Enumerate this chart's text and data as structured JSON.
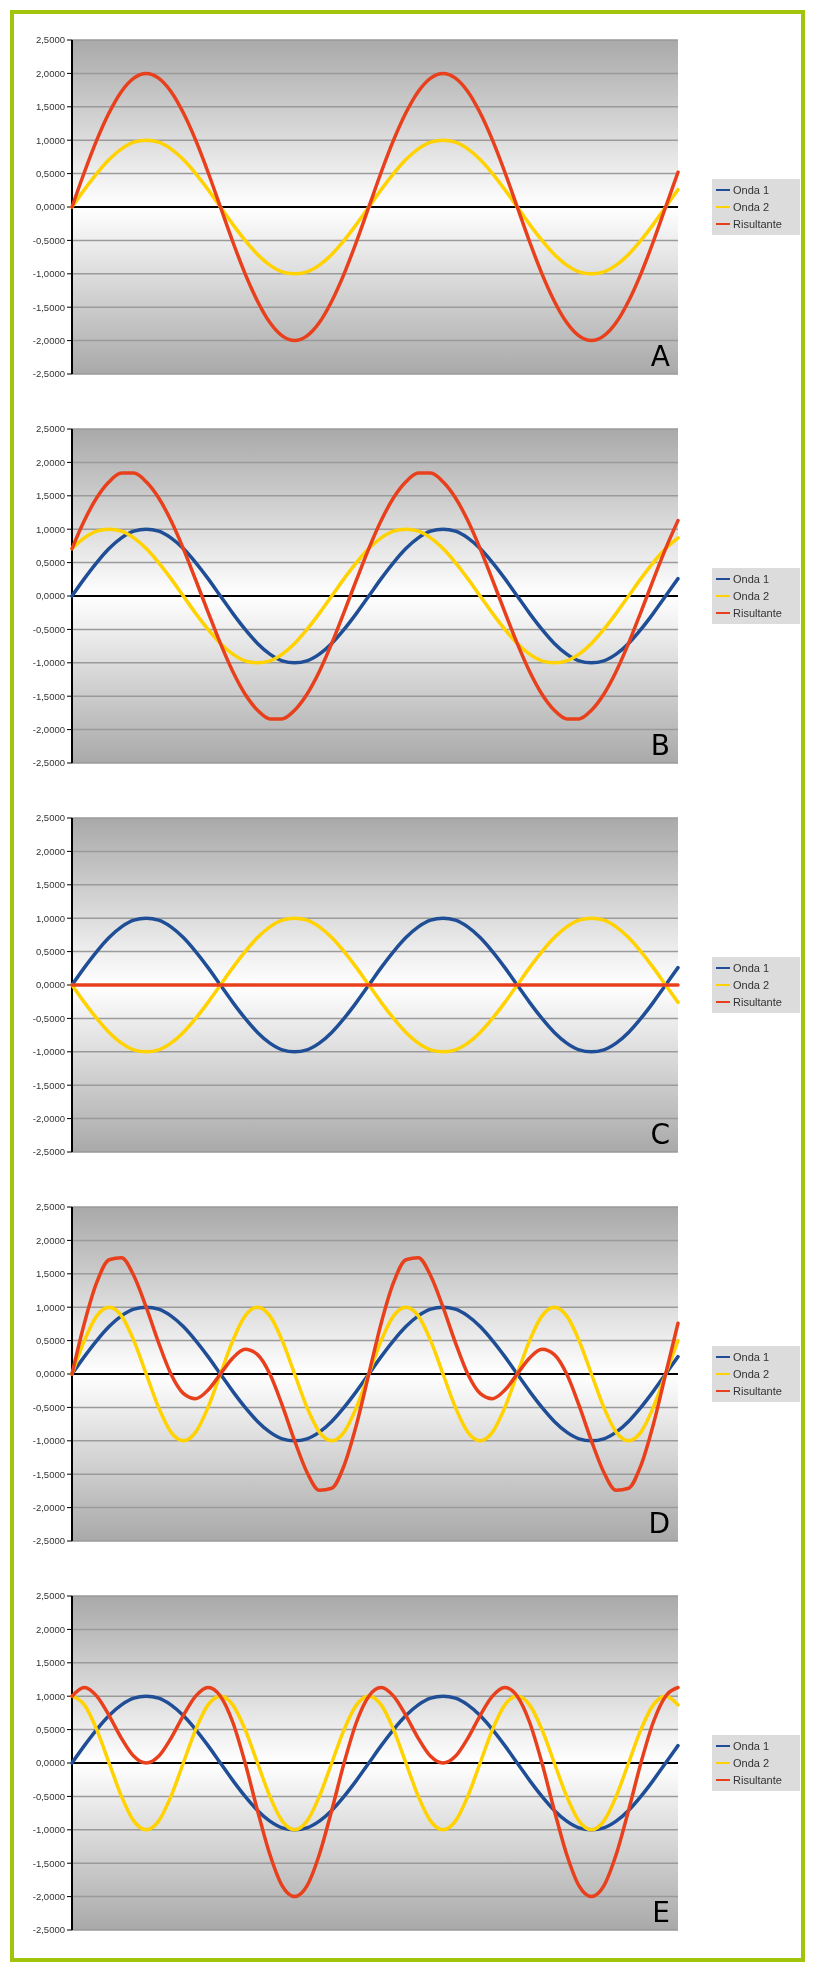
{
  "chart_data": [
    {
      "type": "line",
      "annotations": [
        "A"
      ],
      "legend": "right",
      "grid": "y",
      "ylim": [
        -2.5,
        2.5
      ],
      "yticks": [
        {
          "value": 2.5,
          "label": "2,5000"
        },
        {
          "value": 2,
          "label": "2,0000"
        },
        {
          "value": 1.5,
          "label": "1,5000"
        },
        {
          "value": 1,
          "label": "1,0000"
        },
        {
          "value": 0.5,
          "label": "0,5000"
        },
        {
          "value": 0,
          "label": "0,0000"
        },
        {
          "value": -0.5,
          "label": "-0,5000"
        },
        {
          "value": -1,
          "label": "-1,0000"
        },
        {
          "value": -1.5,
          "label": "-1,5000"
        },
        {
          "value": -2,
          "label": "-2,0000"
        },
        {
          "value": -2.5,
          "label": "-2,5000"
        }
      ],
      "categories": [
        null,
        null,
        null,
        null,
        null,
        null,
        null,
        null,
        null,
        null,
        null,
        null,
        null,
        null,
        null,
        null,
        null,
        null,
        null,
        null,
        null,
        null,
        null,
        null,
        null,
        null,
        null,
        null,
        null,
        null,
        null,
        null,
        null,
        null,
        null,
        null,
        null,
        null,
        null,
        null,
        null,
        null,
        null,
        null,
        null,
        null,
        null,
        null,
        null,
        null
      ],
      "series": [
        {
          "name": "Onda 1",
          "color": "#1f4e96",
          "values": [
            null,
            null,
            null,
            null,
            null,
            null,
            null,
            null,
            null,
            null,
            null,
            null,
            null,
            null,
            null,
            null,
            null,
            null,
            null,
            null,
            null,
            null,
            null,
            null,
            null,
            null,
            null,
            null,
            null,
            null,
            null,
            null,
            null,
            null,
            null,
            null,
            null,
            null,
            null,
            null,
            null,
            null,
            null,
            null,
            null,
            null,
            null,
            null,
            null,
            null
          ]
        },
        {
          "name": "Onda 2",
          "color": "#ffd200",
          "values": [
            0,
            0.26,
            0.5,
            0.71,
            0.87,
            0.97,
            1,
            0.97,
            0.87,
            0.71,
            0.5,
            0.26,
            0,
            -0.26,
            -0.5,
            -0.71,
            -0.87,
            -0.97,
            -1,
            -0.97,
            -0.87,
            -0.71,
            -0.5,
            -0.26,
            0,
            0.26,
            0.5,
            0.71,
            0.87,
            0.97,
            1,
            0.97,
            0.87,
            0.71,
            0.5,
            0.26,
            0,
            -0.26,
            -0.5,
            -0.71,
            -0.87,
            -0.97,
            -1,
            -0.97,
            -0.87,
            -0.71,
            -0.5,
            -0.26,
            0,
            0.26
          ]
        },
        {
          "name": "Risultante",
          "color": "#e8401c",
          "values": [
            0,
            0.52,
            1,
            1.41,
            1.73,
            1.93,
            2,
            1.93,
            1.73,
            1.41,
            1,
            0.52,
            0,
            -0.52,
            -1,
            -1.41,
            -1.73,
            -1.93,
            -2,
            -1.93,
            -1.73,
            -1.41,
            -1,
            -0.52,
            0,
            0.52,
            1,
            1.41,
            1.73,
            1.93,
            2,
            1.93,
            1.73,
            1.41,
            1,
            0.52,
            0,
            -0.52,
            -1,
            -1.41,
            -1.73,
            -1.93,
            -2,
            -1.93,
            -1.73,
            -1.41,
            -1,
            -0.52,
            0,
            0.52
          ]
        }
      ]
    },
    {
      "type": "line",
      "annotations": [
        "B"
      ],
      "legend": "right",
      "grid": "y",
      "ylim": [
        -2.5,
        2.5
      ],
      "yticks": [
        {
          "value": 2.5,
          "label": "2,5000"
        },
        {
          "value": 2,
          "label": "2,0000"
        },
        {
          "value": 1.5,
          "label": "1,5000"
        },
        {
          "value": 1,
          "label": "1,0000"
        },
        {
          "value": 0.5,
          "label": "0,5000"
        },
        {
          "value": 0,
          "label": "0,0000"
        },
        {
          "value": -0.5,
          "label": "-0,5000"
        },
        {
          "value": -1,
          "label": "-1,0000"
        },
        {
          "value": -1.5,
          "label": "-1,5000"
        },
        {
          "value": -2,
          "label": "-2,0000"
        },
        {
          "value": -2.5,
          "label": "-2,5000"
        }
      ],
      "categories": [
        null,
        null,
        null,
        null,
        null,
        null,
        null,
        null,
        null,
        null,
        null,
        null,
        null,
        null,
        null,
        null,
        null,
        null,
        null,
        null,
        null,
        null,
        null,
        null,
        null,
        null,
        null,
        null,
        null,
        null,
        null,
        null,
        null,
        null,
        null,
        null,
        null,
        null,
        null,
        null,
        null,
        null,
        null,
        null,
        null,
        null,
        null,
        null,
        null,
        null
      ],
      "series": [
        {
          "name": "Onda 1",
          "color": "#1f4e96",
          "values": [
            0,
            0.26,
            0.5,
            0.71,
            0.87,
            0.97,
            1,
            0.97,
            0.87,
            0.71,
            0.5,
            0.26,
            0,
            -0.26,
            -0.5,
            -0.71,
            -0.87,
            -0.97,
            -1,
            -0.97,
            -0.87,
            -0.71,
            -0.5,
            -0.26,
            0,
            0.26,
            0.5,
            0.71,
            0.87,
            0.97,
            1,
            0.97,
            0.87,
            0.71,
            0.5,
            0.26,
            0,
            -0.26,
            -0.5,
            -0.71,
            -0.87,
            -0.97,
            -1,
            -0.97,
            -0.87,
            -0.71,
            -0.5,
            -0.26,
            0,
            0.26
          ]
        },
        {
          "name": "Onda 2",
          "color": "#ffd200",
          "values": [
            0.71,
            0.87,
            0.97,
            1,
            0.97,
            0.87,
            0.71,
            0.5,
            0.26,
            0,
            -0.26,
            -0.5,
            -0.71,
            -0.87,
            -0.97,
            -1,
            -0.97,
            -0.87,
            -0.71,
            -0.5,
            -0.26,
            0,
            0.26,
            0.5,
            0.71,
            0.87,
            0.97,
            1,
            0.97,
            0.87,
            0.71,
            0.5,
            0.26,
            0,
            -0.26,
            -0.5,
            -0.71,
            -0.87,
            -0.97,
            -1,
            -0.97,
            -0.87,
            -0.71,
            -0.5,
            -0.26,
            0,
            0.26,
            0.5,
            0.71,
            0.87
          ]
        },
        {
          "name": "Risultante",
          "color": "#e8401c",
          "values": [
            0.71,
            1.13,
            1.47,
            1.71,
            1.84,
            1.84,
            1.71,
            1.47,
            1.13,
            0.71,
            0.24,
            -0.24,
            -0.71,
            -1.13,
            -1.47,
            -1.71,
            -1.84,
            -1.84,
            -1.71,
            -1.47,
            -1.13,
            -0.71,
            -0.24,
            0.24,
            0.71,
            1.13,
            1.47,
            1.71,
            1.84,
            1.84,
            1.71,
            1.47,
            1.13,
            0.71,
            0.24,
            -0.24,
            -0.71,
            -1.13,
            -1.47,
            -1.71,
            -1.84,
            -1.84,
            -1.71,
            -1.47,
            -1.13,
            -0.71,
            -0.24,
            0.24,
            0.71,
            1.13
          ]
        }
      ]
    },
    {
      "type": "line",
      "annotations": [
        "C"
      ],
      "legend": "right",
      "grid": "y",
      "ylim": [
        -2.5,
        2.5
      ],
      "yticks": [
        {
          "value": 2.5,
          "label": "2,5000"
        },
        {
          "value": 2,
          "label": "2,0000"
        },
        {
          "value": 1.5,
          "label": "1,5000"
        },
        {
          "value": 1,
          "label": "1,0000"
        },
        {
          "value": 0.5,
          "label": "0,5000"
        },
        {
          "value": 0,
          "label": "0,0000"
        },
        {
          "value": -0.5,
          "label": "-0,5000"
        },
        {
          "value": -1,
          "label": "-1,0000"
        },
        {
          "value": -1.5,
          "label": "-1,5000"
        },
        {
          "value": -2,
          "label": "-2,0000"
        },
        {
          "value": -2.5,
          "label": "-2,5000"
        }
      ],
      "categories": [
        null,
        null,
        null,
        null,
        null,
        null,
        null,
        null,
        null,
        null,
        null,
        null,
        null,
        null,
        null,
        null,
        null,
        null,
        null,
        null,
        null,
        null,
        null,
        null,
        null,
        null,
        null,
        null,
        null,
        null,
        null,
        null,
        null,
        null,
        null,
        null,
        null,
        null,
        null,
        null,
        null,
        null,
        null,
        null,
        null,
        null,
        null,
        null,
        null,
        null
      ],
      "series": [
        {
          "name": "Onda 1",
          "color": "#1f4e96",
          "values": [
            0,
            0.26,
            0.5,
            0.71,
            0.87,
            0.97,
            1,
            0.97,
            0.87,
            0.71,
            0.5,
            0.26,
            0,
            -0.26,
            -0.5,
            -0.71,
            -0.87,
            -0.97,
            -1,
            -0.97,
            -0.87,
            -0.71,
            -0.5,
            -0.26,
            0,
            0.26,
            0.5,
            0.71,
            0.87,
            0.97,
            1,
            0.97,
            0.87,
            0.71,
            0.5,
            0.26,
            0,
            -0.26,
            -0.5,
            -0.71,
            -0.87,
            -0.97,
            -1,
            -0.97,
            -0.87,
            -0.71,
            -0.5,
            -0.26,
            0,
            0.26
          ]
        },
        {
          "name": "Onda 2",
          "color": "#ffd200",
          "values": [
            0,
            -0.26,
            -0.5,
            -0.71,
            -0.87,
            -0.97,
            -1,
            -0.97,
            -0.87,
            -0.71,
            -0.5,
            -0.26,
            0,
            0.26,
            0.5,
            0.71,
            0.87,
            0.97,
            1,
            0.97,
            0.87,
            0.71,
            0.5,
            0.26,
            0,
            -0.26,
            -0.5,
            -0.71,
            -0.87,
            -0.97,
            -1,
            -0.97,
            -0.87,
            -0.71,
            -0.5,
            -0.26,
            0,
            0.26,
            0.5,
            0.71,
            0.87,
            0.97,
            1,
            0.97,
            0.87,
            0.71,
            0.5,
            0.26,
            0,
            -0.26
          ]
        },
        {
          "name": "Risultante",
          "color": "#e8401c",
          "values": [
            0,
            0,
            0,
            0,
            0,
            0,
            0,
            0,
            0,
            0,
            0,
            0,
            0,
            0,
            0,
            0,
            0,
            0,
            0,
            0,
            0,
            0,
            0,
            0,
            0,
            0,
            0,
            0,
            0,
            0,
            0,
            0,
            0,
            0,
            0,
            0,
            0,
            0,
            0,
            0,
            0,
            0,
            0,
            0,
            0,
            0,
            0,
            0,
            0,
            0
          ]
        }
      ]
    },
    {
      "type": "line",
      "annotations": [
        "D"
      ],
      "legend": "right",
      "grid": "y",
      "ylim": [
        -2.5,
        2.5
      ],
      "yticks": [
        {
          "value": 2.5,
          "label": "2,5000"
        },
        {
          "value": 2,
          "label": "2,0000"
        },
        {
          "value": 1.5,
          "label": "1,5000"
        },
        {
          "value": 1,
          "label": "1,0000"
        },
        {
          "value": 0.5,
          "label": "0,5000"
        },
        {
          "value": 0,
          "label": "0,0000"
        },
        {
          "value": -0.5,
          "label": "-0,5000"
        },
        {
          "value": -1,
          "label": "-1,0000"
        },
        {
          "value": -1.5,
          "label": "-1,5000"
        },
        {
          "value": -2,
          "label": "-2,0000"
        },
        {
          "value": -2.5,
          "label": "-2,5000"
        }
      ],
      "categories": [
        null,
        null,
        null,
        null,
        null,
        null,
        null,
        null,
        null,
        null,
        null,
        null,
        null,
        null,
        null,
        null,
        null,
        null,
        null,
        null,
        null,
        null,
        null,
        null,
        null,
        null,
        null,
        null,
        null,
        null,
        null,
        null,
        null,
        null,
        null,
        null,
        null,
        null,
        null,
        null,
        null,
        null,
        null,
        null,
        null,
        null,
        null,
        null,
        null,
        null
      ],
      "series": [
        {
          "name": "Onda 1",
          "color": "#1f4e96",
          "values": [
            0,
            0.26,
            0.5,
            0.71,
            0.87,
            0.97,
            1,
            0.97,
            0.87,
            0.71,
            0.5,
            0.26,
            0,
            -0.26,
            -0.5,
            -0.71,
            -0.87,
            -0.97,
            -1,
            -0.97,
            -0.87,
            -0.71,
            -0.5,
            -0.26,
            0,
            0.26,
            0.5,
            0.71,
            0.87,
            0.97,
            1,
            0.97,
            0.87,
            0.71,
            0.5,
            0.26,
            0,
            -0.26,
            -0.5,
            -0.71,
            -0.87,
            -0.97,
            -1,
            -0.97,
            -0.87,
            -0.71,
            -0.5,
            -0.26,
            0,
            0.26
          ]
        },
        {
          "name": "Onda 2",
          "color": "#ffd200",
          "values": [
            0,
            0.5,
            0.87,
            1,
            0.87,
            0.5,
            0,
            -0.5,
            -0.87,
            -1,
            -0.87,
            -0.5,
            0,
            0.5,
            0.87,
            1,
            0.87,
            0.5,
            0,
            -0.5,
            -0.87,
            -1,
            -0.87,
            -0.5,
            0,
            0.5,
            0.87,
            1,
            0.87,
            0.5,
            0,
            -0.5,
            -0.87,
            -1,
            -0.87,
            -0.5,
            0,
            0.5,
            0.87,
            1,
            0.87,
            0.5,
            0,
            -0.5,
            -0.87,
            -1,
            -0.87,
            -0.5,
            0,
            0.5
          ]
        },
        {
          "name": "Risultante",
          "color": "#e8401c",
          "values": [
            0,
            0.76,
            1.37,
            1.71,
            1.74,
            1.47,
            1,
            0.47,
            0,
            -0.29,
            -0.37,
            -0.24,
            0,
            0.24,
            0.37,
            0.29,
            0,
            -0.47,
            -1,
            -1.47,
            -1.74,
            -1.71,
            -1.37,
            -0.76,
            0,
            0.76,
            1.37,
            1.71,
            1.74,
            1.47,
            1,
            0.47,
            0,
            -0.29,
            -0.37,
            -0.24,
            0,
            0.24,
            0.37,
            0.29,
            0,
            -0.47,
            -1,
            -1.47,
            -1.74,
            -1.71,
            -1.37,
            -0.76,
            0,
            0.76
          ]
        }
      ]
    },
    {
      "type": "line",
      "annotations": [
        "E"
      ],
      "legend": "right",
      "grid": "y",
      "ylim": [
        -2.5,
        2.5
      ],
      "yticks": [
        {
          "value": 2.5,
          "label": "2,5000"
        },
        {
          "value": 2,
          "label": "2,0000"
        },
        {
          "value": 1.5,
          "label": "1,5000"
        },
        {
          "value": 1,
          "label": "1,0000"
        },
        {
          "value": 0.5,
          "label": "0,5000"
        },
        {
          "value": 0,
          "label": "0,0000"
        },
        {
          "value": -0.5,
          "label": "-0,5000"
        },
        {
          "value": -1,
          "label": "-1,0000"
        },
        {
          "value": -1.5,
          "label": "-1,5000"
        },
        {
          "value": -2,
          "label": "-2,0000"
        },
        {
          "value": -2.5,
          "label": "-2,5000"
        }
      ],
      "categories": [
        null,
        null,
        null,
        null,
        null,
        null,
        null,
        null,
        null,
        null,
        null,
        null,
        null,
        null,
        null,
        null,
        null,
        null,
        null,
        null,
        null,
        null,
        null,
        null,
        null,
        null,
        null,
        null,
        null,
        null,
        null,
        null,
        null,
        null,
        null,
        null,
        null,
        null,
        null,
        null,
        null,
        null,
        null,
        null,
        null,
        null,
        null,
        null,
        null,
        null
      ],
      "series": [
        {
          "name": "Onda 1",
          "color": "#1f4e96",
          "values": [
            0,
            0.26,
            0.5,
            0.71,
            0.87,
            0.97,
            1,
            0.97,
            0.87,
            0.71,
            0.5,
            0.26,
            0,
            -0.26,
            -0.5,
            -0.71,
            -0.87,
            -0.97,
            -1,
            -0.97,
            -0.87,
            -0.71,
            -0.5,
            -0.26,
            0,
            0.26,
            0.5,
            0.71,
            0.87,
            0.97,
            1,
            0.97,
            0.87,
            0.71,
            0.5,
            0.26,
            0,
            -0.26,
            -0.5,
            -0.71,
            -0.87,
            -0.97,
            -1,
            -0.97,
            -0.87,
            -0.71,
            -0.5,
            -0.26,
            0,
            0.26
          ]
        },
        {
          "name": "Onda 2",
          "color": "#ffd200",
          "values": [
            1,
            0.87,
            0.5,
            0,
            -0.5,
            -0.87,
            -1,
            -0.87,
            -0.5,
            0,
            0.5,
            0.87,
            1,
            0.87,
            0.5,
            0,
            -0.5,
            -0.87,
            -1,
            -0.87,
            -0.5,
            0,
            0.5,
            0.87,
            1,
            0.87,
            0.5,
            0,
            -0.5,
            -0.87,
            -1,
            -0.87,
            -0.5,
            0,
            0.5,
            0.87,
            1,
            0.87,
            0.5,
            0,
            -0.5,
            -0.87,
            -1,
            -0.87,
            -0.5,
            0,
            0.5,
            0.87,
            1,
            0.87
          ]
        },
        {
          "name": "Risultante",
          "color": "#e8401c",
          "values": [
            1,
            1.13,
            1,
            0.71,
            0.37,
            0.1,
            0,
            0.1,
            0.37,
            0.71,
            1,
            1.13,
            1,
            0.61,
            0,
            -0.71,
            -1.37,
            -1.84,
            -2,
            -1.84,
            -1.37,
            -0.71,
            0,
            0.61,
            1,
            1.13,
            1,
            0.71,
            0.37,
            0.1,
            0,
            0.1,
            0.37,
            0.71,
            1,
            1.13,
            1,
            0.61,
            0,
            -0.71,
            -1.37,
            -1.84,
            -2,
            -1.84,
            -1.37,
            -0.71,
            0,
            0.61,
            1,
            1.13
          ]
        }
      ]
    }
  ]
}
